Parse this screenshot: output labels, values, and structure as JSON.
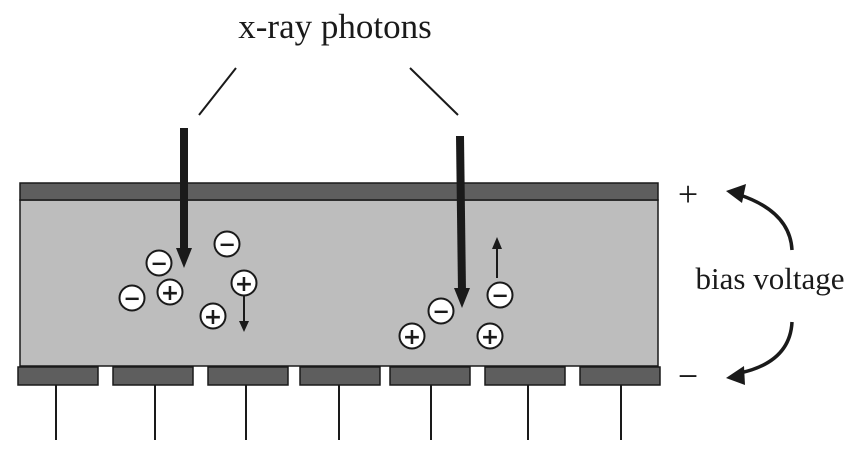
{
  "diagram": {
    "title": "x-ray photons",
    "side_label": "bias voltage",
    "top_terminal": "+",
    "bottom_terminal": "−",
    "charge_negative": "−",
    "charge_positive": "+",
    "colors": {
      "detector_body": "#bdbdbd",
      "electrode": "#5e5e5e",
      "outline": "#1a1a1a",
      "background": "#ffffff"
    },
    "pixel_electrode_count": 7,
    "photon_count": 2
  }
}
